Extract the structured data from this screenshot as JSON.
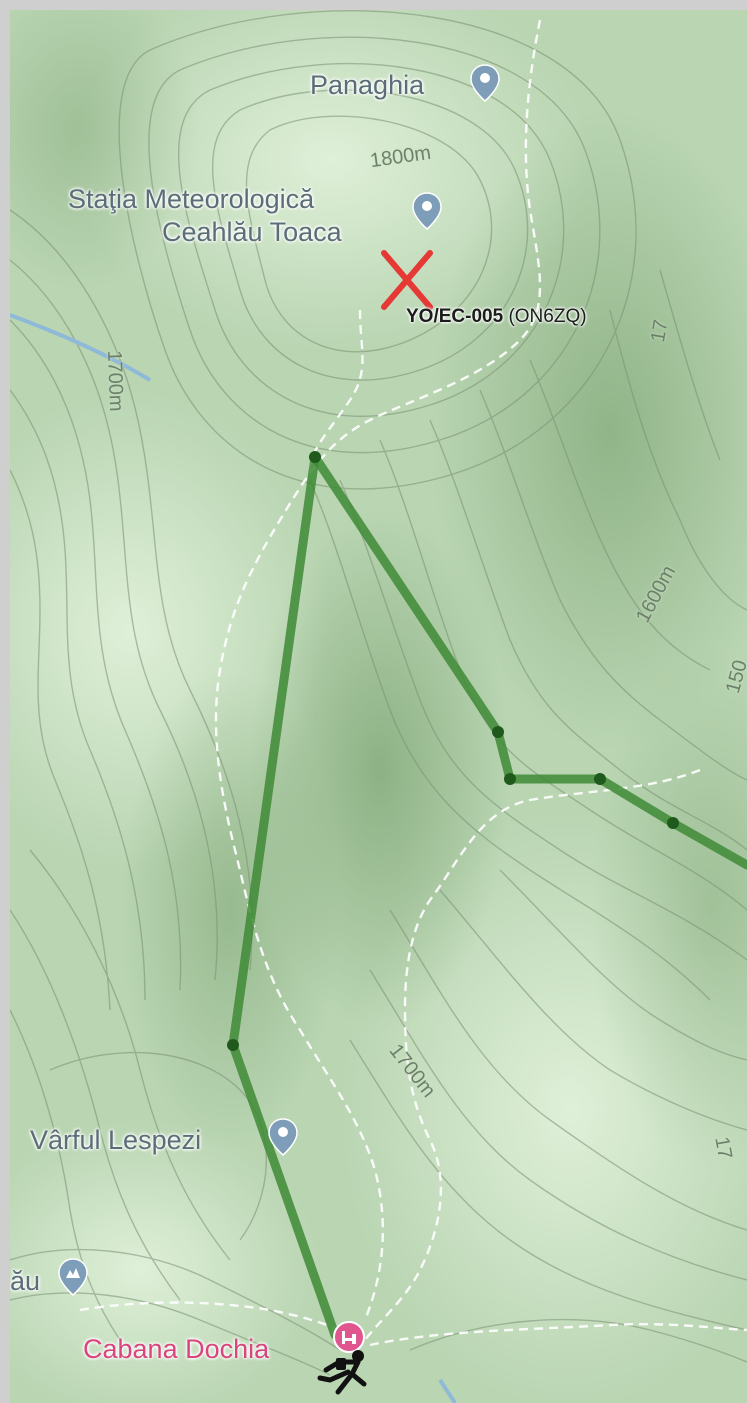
{
  "map": {
    "pois": {
      "panaghia": "Panaghia",
      "statia_line1": "Staţia Meteorologică",
      "statia_line2": "Ceahlău Toaca",
      "varful_lespezi": "Vârful Lespezi",
      "partial_left": "ău",
      "cabana_dochia": "Cabana Dochia"
    },
    "contours": {
      "c1800": "1800m",
      "c1700_left": "1700m",
      "c1700_right": "17",
      "c1600": "1600m",
      "c1500": "150",
      "c1700_bottom": "1700m",
      "c17_edge": "17"
    },
    "summit_marker": {
      "ref": "YO/EC-005",
      "operator": "(ON6ZQ)",
      "marker_color": "#e53935"
    },
    "route_color": "#3e8a36",
    "trail_color": "#ffffff",
    "icons": [
      "map-pin-icon",
      "summit-cross-icon",
      "hut-icon",
      "hiker-icon",
      "peak-icon"
    ]
  }
}
